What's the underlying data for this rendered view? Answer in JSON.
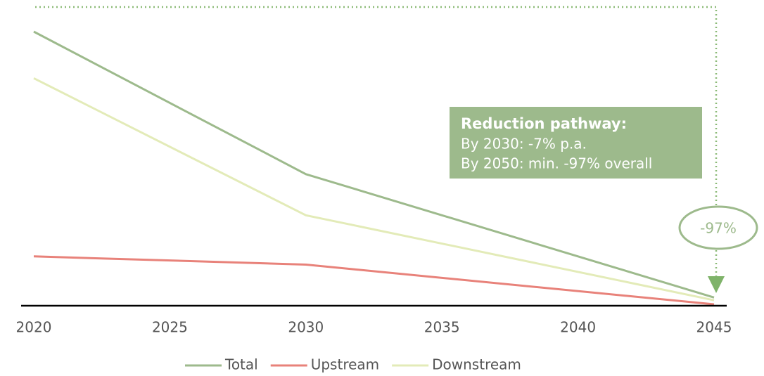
{
  "chart_data": {
    "type": "line",
    "x": [
      2020,
      2030,
      2045
    ],
    "xlim": [
      2020,
      2045
    ],
    "xticks": [
      2020,
      2025,
      2030,
      2035,
      2040,
      2045
    ],
    "ylim": [
      0,
      100
    ],
    "series": [
      {
        "name": "Total",
        "color": "#9dba8c",
        "values": [
          100,
          48,
          3
        ]
      },
      {
        "name": "Upstream",
        "color": "#e8827a",
        "values": [
          18,
          15,
          0.5
        ]
      },
      {
        "name": "Downstream",
        "color": "#e3ebb8",
        "values": [
          83,
          33,
          2
        ]
      }
    ],
    "annotations": {
      "box_title": "Reduction pathway:",
      "box_lines": [
        "By 2030: -7% p.a.",
        "By 2050: min. -97% overall"
      ],
      "bubble": "-97%"
    }
  }
}
